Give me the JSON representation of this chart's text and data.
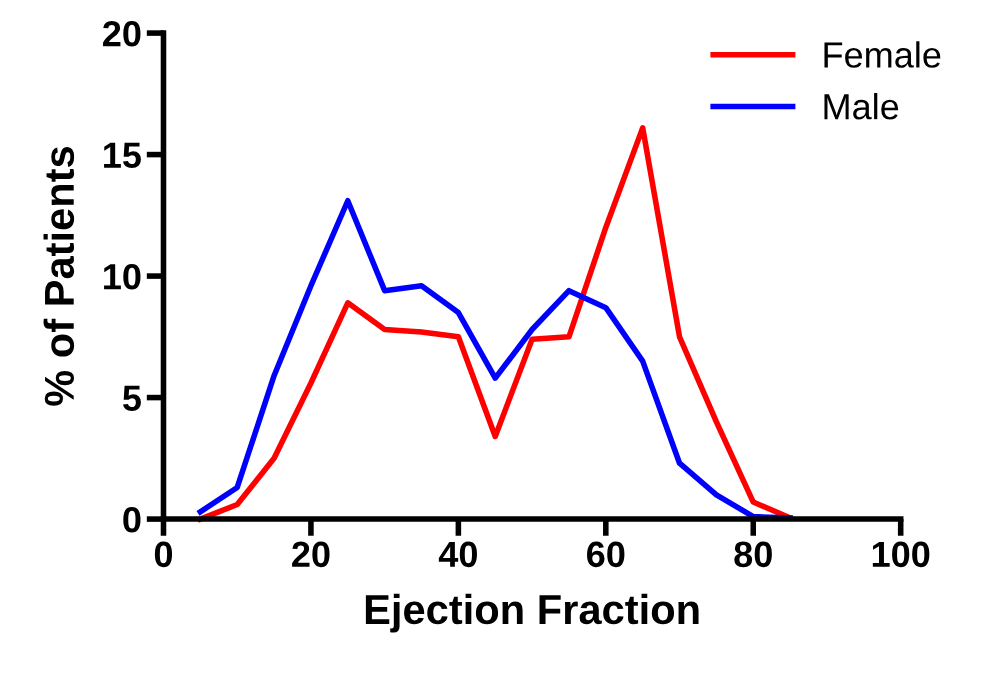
{
  "chart_data": {
    "type": "line",
    "xlabel": "Ejection Fraction",
    "ylabel": "% of Patients",
    "x": [
      5,
      10,
      15,
      20,
      25,
      30,
      35,
      40,
      45,
      50,
      55,
      60,
      65,
      70,
      75,
      80,
      85
    ],
    "series": [
      {
        "name": "Female",
        "color": "#ff0000",
        "values": [
          0,
          0.6,
          2.5,
          5.6,
          8.9,
          7.8,
          7.7,
          7.5,
          3.4,
          7.4,
          7.5,
          12.0,
          16.1,
          7.5,
          4.0,
          0.7,
          0.05
        ]
      },
      {
        "name": "Male",
        "color": "#0000ff",
        "values": [
          0.3,
          1.3,
          5.9,
          9.6,
          13.1,
          9.4,
          9.6,
          8.5,
          5.8,
          7.8,
          9.4,
          8.7,
          6.5,
          2.3,
          1.0,
          0.1,
          0.05
        ]
      }
    ],
    "xlim": [
      0,
      100
    ],
    "ylim": [
      0,
      20
    ],
    "xticks": [
      0,
      20,
      40,
      60,
      80,
      100
    ],
    "yticks": [
      0,
      5,
      10,
      15,
      20
    ],
    "grid": false,
    "legend": "top right",
    "marker": "none",
    "line_style": "solid"
  }
}
